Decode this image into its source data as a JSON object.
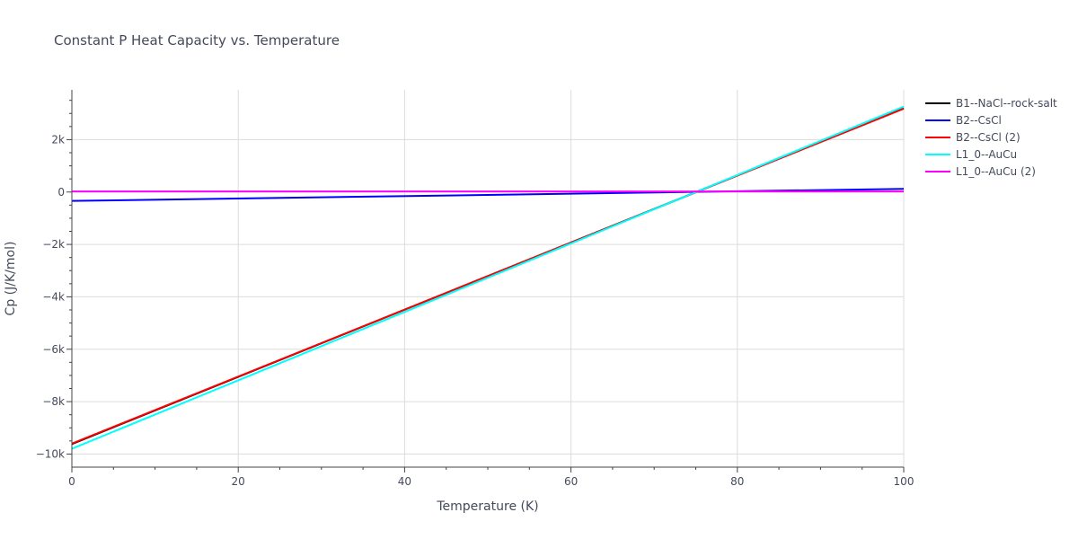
{
  "chart_data": {
    "type": "line",
    "title": "Constant P Heat Capacity vs. Temperature",
    "xlabel": "Temperature (K)",
    "ylabel": "Cp (J/K/mol)",
    "xlim": [
      0,
      100
    ],
    "ylim": [
      -10500,
      3900
    ],
    "x_ticks": [
      0,
      20,
      40,
      60,
      80,
      100
    ],
    "x_tick_labels": [
      "0",
      "20",
      "40",
      "60",
      "80",
      "100"
    ],
    "y_ticks": [
      -10000,
      -8000,
      -6000,
      -4000,
      -2000,
      0,
      2000
    ],
    "y_tick_labels": [
      "−10k",
      "−8k",
      "−6k",
      "−4k",
      "−2k",
      "0",
      "2k"
    ],
    "grid": true,
    "legend_position": "right",
    "series": [
      {
        "name": "B1--NaCl--rock-salt",
        "color": "#000000",
        "x": [
          0,
          100
        ],
        "y": [
          -9620,
          3200
        ]
      },
      {
        "name": "B2--CsCl",
        "color": "#0000ff",
        "x": [
          0,
          100
        ],
        "y": [
          -340,
          120
        ]
      },
      {
        "name": "B2--CsCl (2)",
        "color": "#ff0000",
        "x": [
          0,
          100
        ],
        "y": [
          -9600,
          3180
        ]
      },
      {
        "name": "L1_0--AuCu",
        "color": "#00ffff",
        "x": [
          0,
          100
        ],
        "y": [
          -9800,
          3260
        ]
      },
      {
        "name": "L1_0--AuCu (2)",
        "color": "#ff00ff",
        "x": [
          0,
          100
        ],
        "y": [
          20,
          20
        ]
      }
    ]
  }
}
